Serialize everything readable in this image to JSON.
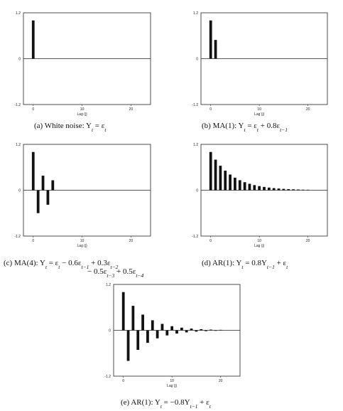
{
  "chart_data": [
    {
      "type": "bar",
      "panel": "a",
      "caption": "(a)  White noise: Y_t = ε_t",
      "xlabel": "Lag (j)",
      "xticks": [
        0,
        10,
        20
      ],
      "yticks": [
        "1.2",
        "0",
        "-1.2"
      ],
      "ylim": [
        -1.2,
        1.2
      ],
      "xlim": [
        -2,
        24
      ],
      "x": [
        0
      ],
      "values": [
        1.0
      ]
    },
    {
      "type": "bar",
      "panel": "b",
      "caption": "(b)  MA(1): Y_t = ε_t + 0.8ε_{t−1}",
      "xlabel": "Lag (j)",
      "xticks": [
        0,
        10,
        20
      ],
      "yticks": [
        "1.2",
        "0",
        "-1.2"
      ],
      "ylim": [
        -1.2,
        1.2
      ],
      "xlim": [
        -2,
        24
      ],
      "x": [
        0,
        1
      ],
      "values": [
        1.0,
        0.49
      ]
    },
    {
      "type": "bar",
      "panel": "c",
      "caption": "(c)  MA(4): Y_t = ε_t − 0.6ε_{t−1} + 0.3ε_{t−2}",
      "caption2": "− 0.5ε_{t−3} + 0.5ε_{t−4}",
      "xlabel": "Lag (j)",
      "xticks": [
        0,
        10,
        20
      ],
      "yticks": [
        "1.2",
        "0",
        "-1.2"
      ],
      "ylim": [
        -1.2,
        1.2
      ],
      "xlim": [
        -2,
        24
      ],
      "x": [
        0,
        1,
        2,
        3,
        4
      ],
      "values": [
        1.0,
        -0.6,
        0.38,
        -0.38,
        0.26
      ]
    },
    {
      "type": "bar",
      "panel": "d",
      "caption": "(d)  AR(1): Y_t = 0.8Y_{t−1} + ε_t",
      "xlabel": "Lag (j)",
      "xticks": [
        0,
        10,
        20
      ],
      "yticks": [
        "1.2",
        "0",
        "-1.2"
      ],
      "ylim": [
        -1.2,
        1.2
      ],
      "xlim": [
        -2,
        24
      ],
      "x": [
        0,
        1,
        2,
        3,
        4,
        5,
        6,
        7,
        8,
        9,
        10,
        11,
        12,
        13,
        14,
        15,
        16,
        17,
        18,
        19,
        20
      ],
      "values": [
        1.0,
        0.8,
        0.64,
        0.512,
        0.41,
        0.328,
        0.262,
        0.21,
        0.168,
        0.134,
        0.107,
        0.086,
        0.069,
        0.055,
        0.044,
        0.035,
        0.028,
        0.023,
        0.018,
        0.014,
        0.012
      ]
    },
    {
      "type": "bar",
      "panel": "e",
      "caption": "(e)  AR(1): Y_t = −0.8Y_{t−1} + ε_t",
      "xlabel": "Lag (j)",
      "xticks": [
        0,
        10,
        20
      ],
      "yticks": [
        "1.2",
        "0",
        "-1.2"
      ],
      "ylim": [
        -1.2,
        1.2
      ],
      "xlim": [
        -2,
        24
      ],
      "x": [
        0,
        1,
        2,
        3,
        4,
        5,
        6,
        7,
        8,
        9,
        10,
        11,
        12,
        13,
        14,
        15,
        16,
        17,
        18,
        19,
        20
      ],
      "values": [
        1.0,
        -0.8,
        0.64,
        -0.512,
        0.41,
        -0.328,
        0.262,
        -0.21,
        0.168,
        -0.134,
        0.107,
        -0.086,
        0.069,
        -0.055,
        0.044,
        -0.035,
        0.028,
        -0.023,
        0.018,
        -0.014,
        0.012
      ]
    }
  ]
}
